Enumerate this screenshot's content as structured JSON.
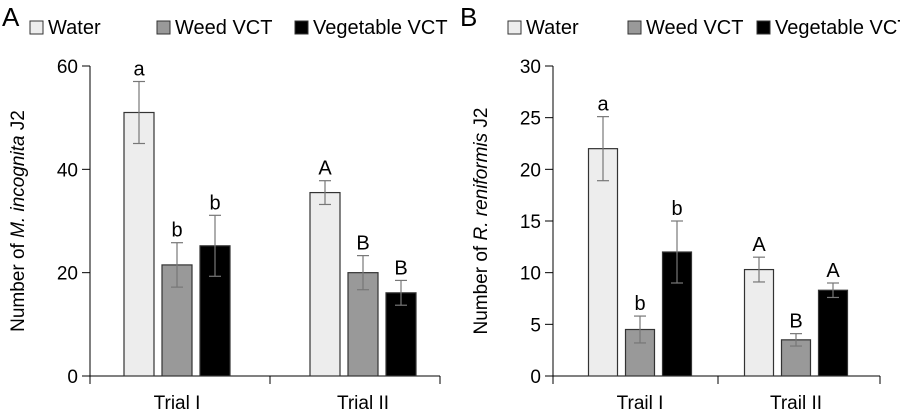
{
  "chart_data": [
    {
      "type": "bar",
      "panel": "A",
      "title": "",
      "xlabel": "",
      "ylabel_prefix": "Number of ",
      "ylabel_italic": "M. incognita",
      "ylabel_suffix": " J2",
      "ylim": [
        0,
        60
      ],
      "yticks": [
        0,
        20,
        40,
        60
      ],
      "categories": [
        "Trial I",
        "Trial II"
      ],
      "legend": [
        "Water",
        "Weed VCT",
        "Vegetable VCT"
      ],
      "legend_position": "top",
      "series": [
        {
          "name": "Water",
          "color": "#ededed",
          "values": [
            51,
            35.5
          ],
          "errors": [
            6,
            2.3
          ],
          "sig": [
            "a",
            "A"
          ]
        },
        {
          "name": "Weed VCT",
          "color": "#999999",
          "values": [
            21.5,
            20
          ],
          "errors": [
            4.3,
            3.3
          ],
          "sig": [
            "b",
            "B"
          ]
        },
        {
          "name": "Vegetable VCT",
          "color": "#000000",
          "values": [
            25.2,
            16.1
          ],
          "errors": [
            5.9,
            2.4
          ],
          "sig": [
            "b",
            "B"
          ]
        }
      ]
    },
    {
      "type": "bar",
      "panel": "B",
      "title": "",
      "xlabel": "",
      "ylabel_prefix": "Number of ",
      "ylabel_italic": "R. reniformis",
      "ylabel_suffix": " J2",
      "ylim": [
        0,
        30
      ],
      "yticks": [
        0,
        5,
        10,
        15,
        20,
        25,
        30
      ],
      "categories": [
        "Trail I",
        "Trail II"
      ],
      "legend": [
        "Water",
        "Weed VCT",
        "Vegetable VCT"
      ],
      "legend_position": "top",
      "series": [
        {
          "name": "Water",
          "color": "#ededed",
          "values": [
            22,
            10.3
          ],
          "errors": [
            3.1,
            1.2
          ],
          "sig": [
            "a",
            "A"
          ]
        },
        {
          "name": "Weed VCT",
          "color": "#999999",
          "values": [
            4.5,
            3.5
          ],
          "errors": [
            1.3,
            0.6
          ],
          "sig": [
            "b",
            "B"
          ]
        },
        {
          "name": "Vegetable VCT",
          "color": "#000000",
          "values": [
            12,
            8.3
          ],
          "errors": [
            3.0,
            0.7
          ],
          "sig": [
            "b",
            "A"
          ]
        }
      ]
    }
  ]
}
